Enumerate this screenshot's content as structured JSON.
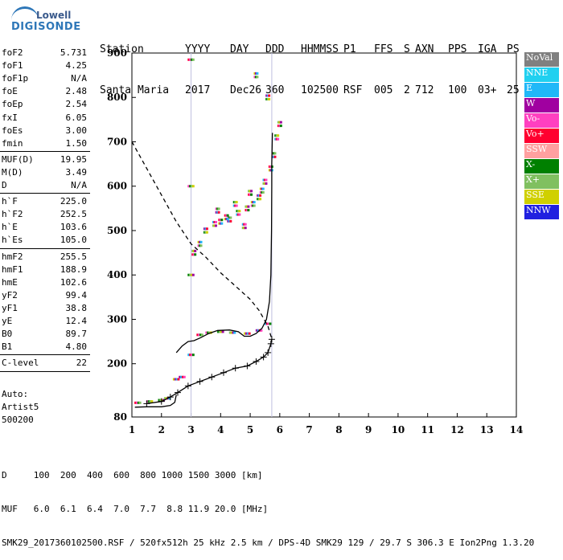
{
  "logo": {
    "line1": "Lowell",
    "line2": "DIGISONDE"
  },
  "header": {
    "row1": [
      "Station",
      "YYYY",
      "DAY",
      "DDD",
      "HHMMSS",
      "P1",
      "FFS",
      "S",
      "AXN",
      "PPS",
      "IGA",
      "PS"
    ],
    "row2": [
      "Santa Maria",
      "2017",
      "Dec26",
      "360",
      "102500",
      "RSF",
      "005",
      "2",
      "712",
      "100",
      "03+",
      "25"
    ]
  },
  "params": [
    {
      "k": "foF2",
      "v": "5.731"
    },
    {
      "k": "foF1",
      "v": "4.25"
    },
    {
      "k": "foF1p",
      "v": "N/A"
    },
    {
      "k": "foE",
      "v": "2.48"
    },
    {
      "k": "foEp",
      "v": "2.54"
    },
    {
      "k": "fxI",
      "v": "6.05"
    },
    {
      "k": "foEs",
      "v": "3.00"
    },
    {
      "k": "fmin",
      "v": "1.50"
    },
    {
      "k": "MUF(D)",
      "v": "19.95"
    },
    {
      "k": "M(D)",
      "v": "3.49"
    },
    {
      "k": "D",
      "v": "N/A"
    },
    {
      "k": "h`F",
      "v": "225.0"
    },
    {
      "k": "h`F2",
      "v": "252.5"
    },
    {
      "k": "h`E",
      "v": "103.6"
    },
    {
      "k": "h`Es",
      "v": "105.0"
    },
    {
      "k": "hmF2",
      "v": "255.5"
    },
    {
      "k": "hmF1",
      "v": "188.9"
    },
    {
      "k": "hmE",
      "v": "102.6"
    },
    {
      "k": "yF2",
      "v": "99.4"
    },
    {
      "k": "yF1",
      "v": "38.8"
    },
    {
      "k": "yE",
      "v": "12.4"
    },
    {
      "k": "B0",
      "v": "89.7"
    },
    {
      "k": "B1",
      "v": "4.80"
    },
    {
      "k": "C-level",
      "v": "22"
    }
  ],
  "auto": {
    "line1": "Auto:",
    "line2": "Artist5",
    "line3": "500200"
  },
  "footer": {
    "line1": "D     100  200  400  600  800 1000 1500 3000 [km]",
    "line2": "MUF   6.0  6.1  6.4  7.0  7.7  8.8 11.9 20.0 [MHz]",
    "line3": "SMK29_2017360102500.RSF / 520fx512h 25 kHz 2.5 km / DPS-4D SMK29 129 / 29.7 S 306.3 E Ion2Png 1.3.20"
  },
  "legend": [
    {
      "label": "NoVal",
      "color": "#808080"
    },
    {
      "label": "NNE",
      "color": "#20d0f0"
    },
    {
      "label": "E",
      "color": "#20b8f8"
    },
    {
      "label": "W",
      "color": "#a000a0"
    },
    {
      "label": "Vo-",
      "color": "#ff40c0"
    },
    {
      "label": "Vo+",
      "color": "#ff0030"
    },
    {
      "label": "SSW",
      "color": "#ffa0a0"
    },
    {
      "label": "X-",
      "color": "#008000"
    },
    {
      "label": "X+",
      "color": "#80c060"
    },
    {
      "label": "SSE",
      "color": "#d0d000"
    },
    {
      "label": "NNW",
      "color": "#2020e0"
    }
  ],
  "chart_data": {
    "type": "scatter",
    "xlabel": "",
    "ylabel": "",
    "xlim": [
      1,
      14
    ],
    "ylim": [
      80,
      900
    ],
    "x_ticks": [
      "1",
      "2",
      "3",
      "4",
      "5",
      "6",
      "7",
      "8",
      "9",
      "10",
      "11",
      "12",
      "13",
      "14"
    ],
    "y_ticks": [
      "80",
      "200",
      "300",
      "400",
      "500",
      "600",
      "700",
      "800",
      "900"
    ],
    "grid": false,
    "legend_position": "right",
    "ne_profile": [
      [
        1.5,
        110
      ],
      [
        2.0,
        115
      ],
      [
        2.3,
        125
      ],
      [
        2.55,
        135
      ],
      [
        2.9,
        150
      ],
      [
        3.3,
        160
      ],
      [
        3.7,
        170
      ],
      [
        4.1,
        180
      ],
      [
        4.5,
        190
      ],
      [
        4.9,
        195
      ],
      [
        5.2,
        205
      ],
      [
        5.45,
        215
      ],
      [
        5.6,
        225
      ],
      [
        5.7,
        245
      ],
      [
        5.73,
        255
      ]
    ],
    "trace_f": [
      [
        2.5,
        225
      ],
      [
        2.7,
        240
      ],
      [
        2.9,
        250
      ],
      [
        3.1,
        252
      ],
      [
        3.3,
        258
      ],
      [
        3.6,
        268
      ],
      [
        3.9,
        275
      ],
      [
        4.3,
        276
      ],
      [
        4.6,
        272
      ],
      [
        4.8,
        262
      ],
      [
        5.0,
        262
      ],
      [
        5.2,
        268
      ],
      [
        5.4,
        280
      ],
      [
        5.55,
        300
      ],
      [
        5.65,
        340
      ],
      [
        5.7,
        400
      ],
      [
        5.72,
        500
      ],
      [
        5.73,
        600
      ],
      [
        5.73,
        650
      ],
      [
        5.75,
        720
      ]
    ],
    "trace_e": [
      [
        1.1,
        102
      ],
      [
        1.5,
        103
      ],
      [
        2.0,
        103
      ],
      [
        2.3,
        106
      ],
      [
        2.45,
        113
      ],
      [
        2.5,
        130
      ]
    ],
    "topside": [
      [
        1.0,
        700
      ],
      [
        1.5,
        640
      ],
      [
        2.0,
        580
      ],
      [
        2.5,
        520
      ],
      [
        3.0,
        470
      ],
      [
        3.5,
        440
      ],
      [
        4.0,
        405
      ],
      [
        4.5,
        375
      ],
      [
        5.0,
        345
      ],
      [
        5.3,
        320
      ],
      [
        5.6,
        285
      ],
      [
        5.73,
        256
      ]
    ],
    "scatter_f2": [
      [
        3.1,
        450
      ],
      [
        3.3,
        470
      ],
      [
        3.5,
        500
      ],
      [
        3.8,
        515
      ],
      [
        4.0,
        520
      ],
      [
        4.3,
        525
      ],
      [
        4.6,
        540
      ],
      [
        4.9,
        550
      ],
      [
        5.1,
        560
      ],
      [
        5.3,
        575
      ],
      [
        5.5,
        610
      ],
      [
        5.7,
        640
      ],
      [
        5.8,
        670
      ],
      [
        5.9,
        710
      ],
      [
        6.0,
        740
      ],
      [
        5.2,
        850
      ],
      [
        5.6,
        800
      ],
      [
        4.8,
        510
      ],
      [
        4.2,
        530
      ],
      [
        3.9,
        545
      ],
      [
        4.5,
        560
      ],
      [
        5.0,
        585
      ],
      [
        5.4,
        590
      ]
    ],
    "scatter_low": [
      [
        1.2,
        112
      ],
      [
        1.6,
        115
      ],
      [
        2.0,
        118
      ],
      [
        2.2,
        122
      ],
      [
        2.5,
        165
      ],
      [
        2.7,
        170
      ],
      [
        3.0,
        220
      ],
      [
        3.3,
        265
      ],
      [
        3.6,
        270
      ],
      [
        4.0,
        272
      ],
      [
        4.4,
        270
      ],
      [
        4.9,
        268
      ],
      [
        5.3,
        275
      ],
      [
        5.6,
        290
      ],
      [
        3.0,
        885
      ],
      [
        3.0,
        600
      ],
      [
        3.0,
        400
      ]
    ]
  }
}
